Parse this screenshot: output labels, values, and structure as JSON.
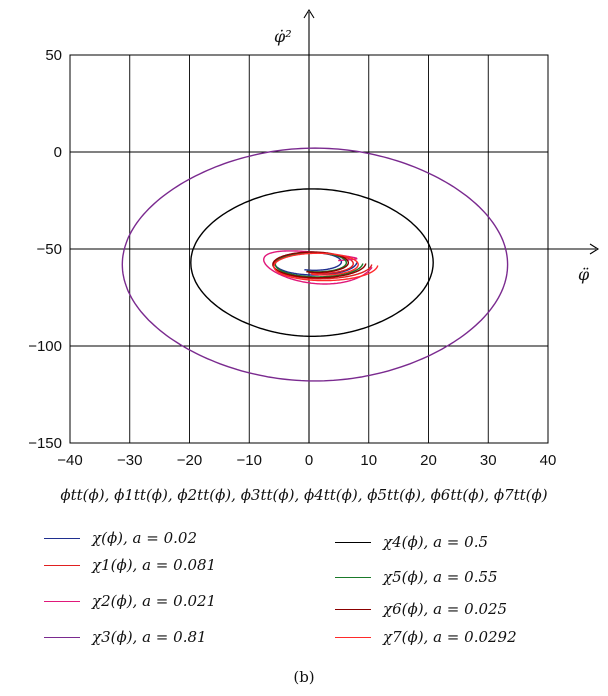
{
  "chart_data": {
    "type": "line",
    "xlim": [
      -40,
      40
    ],
    "ylim": [
      -150,
      50
    ],
    "x_ticks": [
      "−40",
      "−30",
      "−20",
      "−10",
      "0",
      "10",
      "20",
      "30",
      "40"
    ],
    "y_ticks": [
      "50",
      "0",
      "−50",
      "−100",
      "−150"
    ],
    "x_axis_label": "φ̈",
    "y_axis_label": "φ̇²",
    "grid": true,
    "xlabel": "ϕtt(ϕ), ϕ1tt(ϕ), ϕ2tt(ϕ), ϕ3tt(ϕ), ϕ4tt(ϕ), ϕ5tt(ϕ), ϕ6tt(ϕ), ϕ7tt(ϕ)",
    "legend_position": "bottom",
    "series": [
      {
        "name": "χ(ϕ), a = 0.02",
        "color": "#1f2f8f",
        "shape": "spiral",
        "cx": 0.5,
        "cy": -57,
        "r": 7.5,
        "ry": 7
      },
      {
        "name": "χ1(ϕ), a = 0.081",
        "color": "#e02020",
        "shape": "spiral",
        "cx": 1.5,
        "cy": -58,
        "r": 9,
        "ry": 8
      },
      {
        "name": "χ2(ϕ), a = 0.021",
        "color": "#e0187a",
        "shape": "loop",
        "cx": 1,
        "cy": -55,
        "r": 10,
        "ry": 15
      },
      {
        "name": "χ3(ϕ), a = 0.81",
        "color": "#7a2a8f",
        "shape": "ellipse",
        "cx": 1,
        "cy": -58,
        "rx": 31,
        "ry": 60
      },
      {
        "name": "χ4(ϕ), a = 0.5",
        "color": "#000000",
        "shape": "ellipse",
        "cx": 0.5,
        "cy": -57,
        "rx": 19.5,
        "ry": 38
      },
      {
        "name": "χ5(ϕ), a = 0.55",
        "color": "#1a7a2a",
        "shape": "spiral",
        "cx": 1,
        "cy": -57.5,
        "r": 8,
        "ry": 7.5
      },
      {
        "name": "χ6(ϕ), a = 0.025",
        "color": "#8b0000",
        "shape": "spiral",
        "cx": 1,
        "cy": -57.5,
        "r": 8.5,
        "ry": 8
      },
      {
        "name": "χ7(ϕ), a = 0.0292",
        "color": "#ff2a2a",
        "shape": "spiral",
        "cx": 2,
        "cy": -58.5,
        "r": 9.5,
        "ry": 8.5
      }
    ]
  },
  "caption": "(b)"
}
